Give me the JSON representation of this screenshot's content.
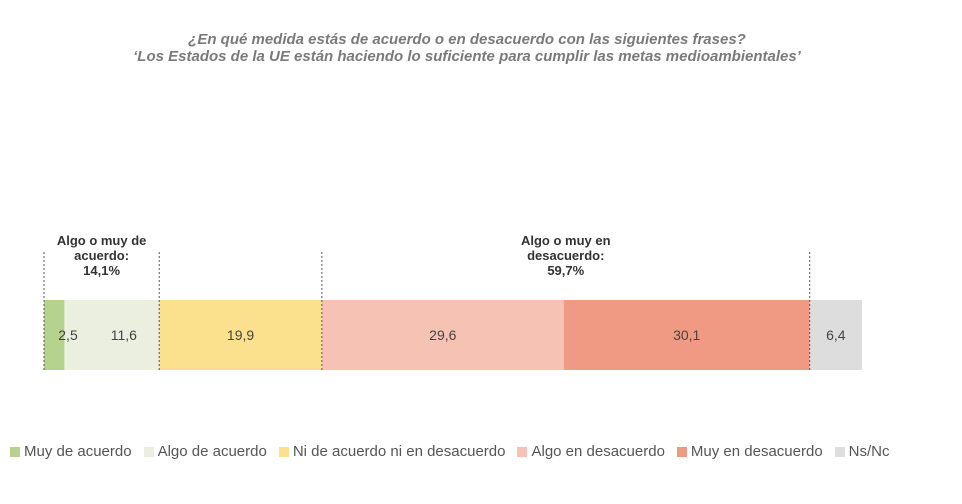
{
  "title_line1": "¿En qué medida estás de acuerdo o en desacuerdo con las siguientes frases?",
  "title_line2": "‘Los Estados de la UE están haciendo lo suficiente para cumplir las metas medioambientales’",
  "chart_data": {
    "type": "bar",
    "orientation": "horizontal-stacked",
    "series": [
      {
        "name": "Muy de acuerdo",
        "value": 2.5,
        "label": "2,5",
        "color": "#b5d38e"
      },
      {
        "name": "Algo de acuerdo",
        "value": 11.6,
        "label": "11,6",
        "color": "#ebefe0"
      },
      {
        "name": "Ni de acuerdo ni en desacuerdo",
        "value": 19.9,
        "label": "19,9",
        "color": "#fbe18e"
      },
      {
        "name": "Algo en desacuerdo",
        "value": 29.6,
        "label": "29,6",
        "color": "#f5c2b3"
      },
      {
        "name": "Muy en desacuerdo",
        "value": 30.1,
        "label": "30,1",
        "color": "#f09a84"
      },
      {
        "name": "Ns/Nc",
        "value": 6.4,
        "label": "6,4",
        "color": "#dddddd"
      }
    ],
    "annotations": [
      {
        "lines": [
          "Algo o muy de",
          "acuerdo:",
          "14,1%"
        ],
        "from_segment": 0,
        "to_segment": 1
      },
      {
        "lines": [
          "Algo o muy en",
          "desacuerdo:",
          "59,7%"
        ],
        "from_segment": 3,
        "to_segment": 4
      }
    ],
    "legend_position": "bottom"
  }
}
